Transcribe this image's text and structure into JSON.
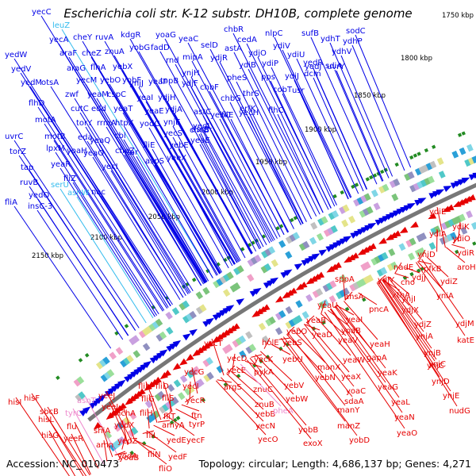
{
  "title": "Escherichia coli str. K-12 substr. DH10B, complete genome",
  "footer": {
    "accession": "Accession: NC_010473",
    "stats": "Topology: circular; Length: 4,686,137 bp; Genes: 4,271"
  },
  "colors": {
    "forward_strand": "#0000e6",
    "reverse_strand": "#e60000",
    "forward_rna": "#33bbee",
    "reverse_rna": "#ee88cc",
    "backbone": "#777777",
    "marker": "#228b22"
  },
  "ticks": [
    "1750 kbp",
    "1800 kbp",
    "1850 kbp",
    "1900 kbp",
    "1950 kbp",
    "2000 kbp",
    "2050 kbp",
    "2100 kbp",
    "2150 kbp"
  ],
  "forward_genes": [
    {
      "label": "yecC",
      "color": "blue"
    },
    {
      "label": "leuZ",
      "color": "cyan"
    },
    {
      "label": "yecA",
      "color": "blue"
    },
    {
      "label": "cheY",
      "color": "blue"
    },
    {
      "label": "ruvA",
      "color": "blue"
    },
    {
      "label": "kdgR",
      "color": "blue"
    },
    {
      "label": "yoaG",
      "color": "blue"
    },
    {
      "label": "yeaC",
      "color": "blue"
    },
    {
      "label": "chbR",
      "color": "blue"
    },
    {
      "label": "nlpC",
      "color": "blue"
    },
    {
      "label": "sufB",
      "color": "blue"
    },
    {
      "label": "sodC",
      "color": "blue"
    },
    {
      "label": "ydhT",
      "color": "blue"
    },
    {
      "label": "ydhP",
      "color": "blue"
    },
    {
      "label": "yedW",
      "color": "blue"
    },
    {
      "label": "araF",
      "color": "blue"
    },
    {
      "label": "cheZ",
      "color": "blue"
    },
    {
      "label": "znuA",
      "color": "blue"
    },
    {
      "label": "yobG",
      "color": "blue"
    },
    {
      "label": "fadD",
      "color": "blue"
    },
    {
      "label": "selD",
      "color": "blue"
    },
    {
      "label": "cedA",
      "color": "blue"
    },
    {
      "label": "ydiV",
      "color": "blue"
    },
    {
      "label": "ydhV",
      "color": "blue"
    },
    {
      "label": "yedV",
      "color": "blue"
    },
    {
      "label": "araG",
      "color": "blue"
    },
    {
      "label": "flhA",
      "color": "blue"
    },
    {
      "label": "yebX",
      "color": "blue"
    },
    {
      "label": "rnd",
      "color": "blue"
    },
    {
      "label": "mipA",
      "color": "blue"
    },
    {
      "label": "astA",
      "color": "blue"
    },
    {
      "label": "ydjO",
      "color": "blue"
    },
    {
      "label": "ydiU",
      "color": "blue"
    },
    {
      "label": "yedR",
      "color": "blue"
    },
    {
      "label": "yedM",
      "color": "blue"
    },
    {
      "label": "otsA",
      "color": "blue"
    },
    {
      "label": "yecM",
      "color": "blue"
    },
    {
      "label": "yebO",
      "color": "blue"
    },
    {
      "label": "yobF",
      "color": "blue"
    },
    {
      "label": "yeaF",
      "color": "blue"
    },
    {
      "label": "topB",
      "color": "blue"
    },
    {
      "label": "ydjR",
      "color": "blue"
    },
    {
      "label": "ydiB",
      "color": "blue"
    },
    {
      "label": "ydiP",
      "color": "blue"
    },
    {
      "label": "yedJ",
      "color": "blue"
    },
    {
      "label": "uvrY",
      "color": "blue"
    },
    {
      "label": "flhD",
      "color": "blue"
    },
    {
      "label": "zwf",
      "color": "blue"
    },
    {
      "label": "yeaM",
      "color": "blue"
    },
    {
      "label": "ynjJ",
      "color": "blue"
    },
    {
      "label": "ynjH",
      "color": "blue"
    },
    {
      "label": "chbF",
      "color": "blue"
    },
    {
      "label": "pheS",
      "color": "blue"
    },
    {
      "label": "pps",
      "color": "blue"
    },
    {
      "label": "ydiJ",
      "color": "blue"
    },
    {
      "label": "dcm",
      "color": "blue"
    },
    {
      "label": "sdiA",
      "color": "blue"
    },
    {
      "label": "motA",
      "color": "blue"
    },
    {
      "label": "cutC",
      "color": "blue"
    },
    {
      "label": "edd",
      "color": "blue"
    },
    {
      "label": "cspC",
      "color": "blue"
    },
    {
      "label": "yeaI",
      "color": "blue"
    },
    {
      "label": "ydjH",
      "color": "blue"
    },
    {
      "label": "ydjF",
      "color": "blue"
    },
    {
      "label": "chbG",
      "color": "blue"
    },
    {
      "label": "thrS",
      "color": "blue"
    },
    {
      "label": "cobT",
      "color": "blue"
    },
    {
      "label": "usr",
      "color": "blue"
    },
    {
      "label": "uvrC",
      "color": "blue"
    },
    {
      "label": "motB",
      "color": "blue"
    },
    {
      "label": "torY",
      "color": "blue"
    },
    {
      "label": "rrmA",
      "color": "blue"
    },
    {
      "label": "yeaT",
      "color": "blue"
    },
    {
      "label": "ydjA",
      "color": "blue"
    },
    {
      "label": "astC",
      "color": "blue"
    },
    {
      "label": "erfK",
      "color": "blue"
    },
    {
      "label": "flhC",
      "color": "blue"
    },
    {
      "label": "torZ",
      "color": "blue"
    },
    {
      "label": "eda",
      "color": "blue"
    },
    {
      "label": "htpX",
      "color": "blue"
    },
    {
      "label": "yeaE",
      "color": "blue"
    },
    {
      "label": "ynjE",
      "color": "blue"
    },
    {
      "label": "yedL",
      "color": "blue"
    },
    {
      "label": "fliE",
      "color": "blue"
    },
    {
      "label": "yecH",
      "color": "blue"
    },
    {
      "label": "tap",
      "color": "blue"
    },
    {
      "label": "lpxM",
      "color": "blue"
    },
    {
      "label": "yoaH",
      "color": "blue"
    },
    {
      "label": "yeaQ",
      "color": "blue"
    },
    {
      "label": "cbl",
      "color": "blue"
    },
    {
      "label": "yodC",
      "color": "blue"
    },
    {
      "label": "yecS",
      "color": "blue"
    },
    {
      "label": "cheB",
      "color": "blue"
    },
    {
      "label": "yebC",
      "color": "blue"
    },
    {
      "label": "ruvB",
      "color": "blue"
    },
    {
      "label": "yeaR",
      "color": "blue"
    },
    {
      "label": "yeaO",
      "color": "blue"
    },
    {
      "label": "cheZ",
      "color": "blue"
    },
    {
      "label": "fliE",
      "color": "blue"
    },
    {
      "label": "yebE",
      "color": "blue"
    },
    {
      "label": "yeaE",
      "color": "blue"
    },
    {
      "label": "yedQ",
      "color": "blue"
    },
    {
      "label": "fliZ",
      "color": "blue"
    },
    {
      "label": "yecI",
      "color": "blue"
    },
    {
      "label": "tar",
      "color": "blue"
    },
    {
      "label": "aspS",
      "color": "blue"
    },
    {
      "label": "yeeX",
      "color": "blue"
    },
    {
      "label": "dsrB",
      "color": "blue"
    },
    {
      "label": "fliA",
      "color": "blue"
    },
    {
      "label": "asnW",
      "color": "cyan"
    },
    {
      "label": "nac",
      "color": "blue"
    },
    {
      "label": "serU",
      "color": "cyan"
    },
    {
      "label": "insC-3",
      "color": "blue"
    }
  ],
  "reverse_genes": [
    {
      "label": "hisI",
      "color": "red"
    },
    {
      "label": "hisF",
      "color": "red"
    },
    {
      "label": "sbcB",
      "color": "red"
    },
    {
      "label": "hisL",
      "color": "red"
    },
    {
      "label": "hisG",
      "color": "red"
    },
    {
      "label": "asnT",
      "color": "pink"
    },
    {
      "label": "tyrC",
      "color": "pink"
    },
    {
      "label": "flu",
      "color": "red"
    },
    {
      "label": "yeeR",
      "color": "red"
    },
    {
      "label": "yeeJ",
      "color": "red"
    },
    {
      "label": "yeeI",
      "color": "red"
    },
    {
      "label": "shiA",
      "color": "red"
    },
    {
      "label": "amn",
      "color": "red"
    },
    {
      "label": "yodB",
      "color": "red"
    },
    {
      "label": "hchA",
      "color": "red"
    },
    {
      "label": "yedX",
      "color": "red"
    },
    {
      "label": "yedZ",
      "color": "red"
    },
    {
      "label": "yodA",
      "color": "red"
    },
    {
      "label": "fliJ",
      "color": "red"
    },
    {
      "label": "fliG",
      "color": "red"
    },
    {
      "label": "fliH",
      "color": "red"
    },
    {
      "label": "fliL",
      "color": "red"
    },
    {
      "label": "fliN",
      "color": "red"
    },
    {
      "label": "fliO",
      "color": "red"
    },
    {
      "label": "fliD",
      "color": "red"
    },
    {
      "label": "fliS",
      "color": "red"
    },
    {
      "label": "fliT",
      "color": "red"
    },
    {
      "label": "amyA",
      "color": "red"
    },
    {
      "label": "yedE",
      "color": "red"
    },
    {
      "label": "yedF",
      "color": "red"
    },
    {
      "label": "yecG",
      "color": "red"
    },
    {
      "label": "yecI",
      "color": "red"
    },
    {
      "label": "yecR",
      "color": "red"
    },
    {
      "label": "ftn",
      "color": "red"
    },
    {
      "label": "tyrP",
      "color": "red"
    },
    {
      "label": "yecF",
      "color": "red"
    },
    {
      "label": "yecT",
      "color": "red"
    },
    {
      "label": "argS",
      "color": "red"
    },
    {
      "label": "yecD",
      "color": "red"
    },
    {
      "label": "yecE",
      "color": "red"
    },
    {
      "label": "yecK",
      "color": "red"
    },
    {
      "label": "pykA",
      "color": "red"
    },
    {
      "label": "znuC",
      "color": "red"
    },
    {
      "label": "znuB",
      "color": "red"
    },
    {
      "label": "yebB",
      "color": "red"
    },
    {
      "label": "yecN",
      "color": "red"
    },
    {
      "label": "yecO",
      "color": "red"
    },
    {
      "label": "holE",
      "color": "red"
    },
    {
      "label": "yebO",
      "color": "red"
    },
    {
      "label": "yebS",
      "color": "red"
    },
    {
      "label": "yebU",
      "color": "red"
    },
    {
      "label": "yebV",
      "color": "red"
    },
    {
      "label": "yebW",
      "color": "red"
    },
    {
      "label": "pheA",
      "color": "pink"
    },
    {
      "label": "yobB",
      "color": "red"
    },
    {
      "label": "exoX",
      "color": "red"
    },
    {
      "label": "yeaB",
      "color": "red"
    },
    {
      "label": "yeaD",
      "color": "red"
    },
    {
      "label": "manX",
      "color": "red"
    },
    {
      "label": "yebN",
      "color": "red"
    },
    {
      "label": "manY",
      "color": "red"
    },
    {
      "label": "manZ",
      "color": "red"
    },
    {
      "label": "yobD",
      "color": "red"
    },
    {
      "label": "yoaB",
      "color": "red"
    },
    {
      "label": "yeaU",
      "color": "red"
    },
    {
      "label": "yeaI",
      "color": "red"
    },
    {
      "label": "yeaV",
      "color": "red"
    },
    {
      "label": "yeaW",
      "color": "red"
    },
    {
      "label": "yeaX",
      "color": "red"
    },
    {
      "label": "yoaC",
      "color": "red"
    },
    {
      "label": "sdaA",
      "color": "red"
    },
    {
      "label": "yeaH",
      "color": "red"
    },
    {
      "label": "gapA",
      "color": "red"
    },
    {
      "label": "yeaG",
      "color": "red"
    },
    {
      "label": "yeaK",
      "color": "red"
    },
    {
      "label": "yeaL",
      "color": "red"
    },
    {
      "label": "yeaN",
      "color": "red"
    },
    {
      "label": "yeaO",
      "color": "red"
    },
    {
      "label": "sppA",
      "color": "red"
    },
    {
      "label": "ansA",
      "color": "red"
    },
    {
      "label": "pncA",
      "color": "red"
    },
    {
      "label": "ydjY",
      "color": "red"
    },
    {
      "label": "ydjX",
      "color": "red"
    },
    {
      "label": "ydjZ",
      "color": "red"
    },
    {
      "label": "ynjA",
      "color": "red"
    },
    {
      "label": "ynjB",
      "color": "red"
    },
    {
      "label": "ynjC",
      "color": "red"
    },
    {
      "label": "ynjD",
      "color": "red"
    },
    {
      "label": "ynjE",
      "color": "red"
    },
    {
      "label": "nudG",
      "color": "red"
    },
    {
      "label": "katE",
      "color": "red"
    },
    {
      "label": "ydjM",
      "color": "red"
    },
    {
      "label": "xthA",
      "color": "red"
    },
    {
      "label": "cho",
      "color": "red"
    },
    {
      "label": "ydjJ",
      "color": "red"
    },
    {
      "label": "ynjI",
      "color": "red"
    },
    {
      "label": "ynjC",
      "color": "red"
    },
    {
      "label": "yniA",
      "color": "red"
    },
    {
      "label": "ydiZ",
      "color": "red"
    },
    {
      "label": "pfkB",
      "color": "red"
    },
    {
      "label": "nadE",
      "color": "red"
    },
    {
      "label": "yniD",
      "color": "red"
    },
    {
      "label": "aroH",
      "color": "red"
    },
    {
      "label": "ydiR",
      "color": "red"
    },
    {
      "label": "ydiO",
      "color": "red"
    },
    {
      "label": "ydiK",
      "color": "red"
    },
    {
      "label": "ydiA",
      "color": "red"
    },
    {
      "label": "ydiE",
      "color": "red"
    }
  ]
}
